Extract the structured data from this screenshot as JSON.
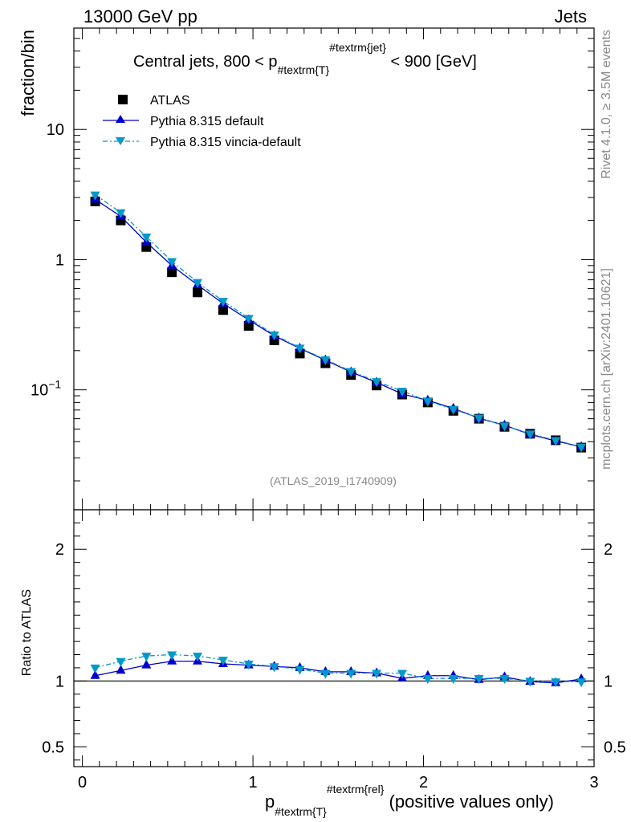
{
  "header": {
    "left": "13000 GeV pp",
    "right": "Jets"
  },
  "side_labels": {
    "rivet": "Rivet 4.1.0, ≥ 3.5M events",
    "mcplots": "mcplots.cern.ch [arXiv:2401.10621]"
  },
  "watermark": "(ATLAS_2019_I1740909)",
  "colors": {
    "atlas": "#000000",
    "pythia_default": "#0000cc",
    "pythia_vincia": "#0099cc"
  },
  "chart_data": [
    {
      "type": "scatter",
      "panel": "main",
      "yscale": "log",
      "title_parts": [
        "Central jets, 800 < p",
        "#textrm{T}",
        "#textrm{jet}",
        " < 900 [GeV]"
      ],
      "ylabel": "fraction/bin",
      "xlim": [
        -0.05,
        3.0
      ],
      "ylim": [
        0.012,
        60
      ],
      "x_ticks": [
        0,
        1,
        2,
        3
      ],
      "y_ticks": [
        {
          "v": 10,
          "label": "10"
        },
        {
          "v": 1,
          "label": "1"
        },
        {
          "v": 0.1,
          "label": "10",
          "sup": "−1"
        }
      ],
      "legend": [
        {
          "name": "ATLAS",
          "marker": "square"
        },
        {
          "name": "Pythia 8.315 default",
          "marker": "triangle-up"
        },
        {
          "name": "Pythia 8.315 vincia-default",
          "marker": "triangle-down"
        }
      ],
      "x": [
        0.075,
        0.225,
        0.375,
        0.525,
        0.675,
        0.825,
        0.975,
        1.125,
        1.275,
        1.425,
        1.575,
        1.725,
        1.875,
        2.025,
        2.175,
        2.325,
        2.475,
        2.625,
        2.775,
        2.925
      ],
      "series": [
        {
          "name": "ATLAS",
          "values": [
            2.8,
            2.0,
            1.25,
            0.8,
            0.56,
            0.41,
            0.31,
            0.24,
            0.19,
            0.16,
            0.13,
            0.108,
            0.092,
            0.08,
            0.069,
            0.06,
            0.052,
            0.046,
            0.041,
            0.036
          ]
        },
        {
          "name": "Pythia 8.315 default",
          "values": [
            2.9,
            2.15,
            1.36,
            0.9,
            0.64,
            0.46,
            0.345,
            0.26,
            0.208,
            0.169,
            0.137,
            0.114,
            0.093,
            0.083,
            0.072,
            0.0605,
            0.0535,
            0.0455,
            0.0405,
            0.0365
          ]
        },
        {
          "name": "Pythia 8.315 vincia-default",
          "values": [
            3.15,
            2.3,
            1.5,
            0.97,
            0.67,
            0.48,
            0.355,
            0.265,
            0.21,
            0.171,
            0.139,
            0.116,
            0.098,
            0.082,
            0.071,
            0.061,
            0.053,
            0.046,
            0.041,
            0.0365
          ]
        }
      ]
    },
    {
      "type": "line",
      "panel": "ratio",
      "ylabel": "Ratio to ATLAS",
      "xlabel_parts": [
        "p",
        "#textrm{T}",
        "#textrm{rel}",
        " (positive values only)"
      ],
      "xlim": [
        -0.05,
        3.0
      ],
      "ylim": [
        0.35,
        2.3
      ],
      "x_ticks": [
        0,
        1,
        2,
        3
      ],
      "y_ticks": [
        0.5,
        1,
        2
      ],
      "x": [
        0.075,
        0.225,
        0.375,
        0.525,
        0.675,
        0.825,
        0.975,
        1.125,
        1.275,
        1.425,
        1.575,
        1.725,
        1.875,
        2.025,
        2.175,
        2.325,
        2.475,
        2.625,
        2.775,
        2.925
      ],
      "series": [
        {
          "name": "Pythia 8.315 default",
          "values": [
            1.04,
            1.08,
            1.12,
            1.15,
            1.15,
            1.13,
            1.12,
            1.11,
            1.1,
            1.07,
            1.07,
            1.06,
            1.02,
            1.04,
            1.04,
            1.01,
            1.03,
            0.995,
            0.985,
            1.015
          ]
        },
        {
          "name": "Pythia 8.315 vincia-default",
          "values": [
            1.1,
            1.15,
            1.19,
            1.2,
            1.19,
            1.16,
            1.13,
            1.11,
            1.09,
            1.06,
            1.06,
            1.06,
            1.06,
            1.02,
            1.02,
            1.02,
            1.02,
            1.0,
            0.995,
            0.995
          ]
        }
      ]
    }
  ]
}
